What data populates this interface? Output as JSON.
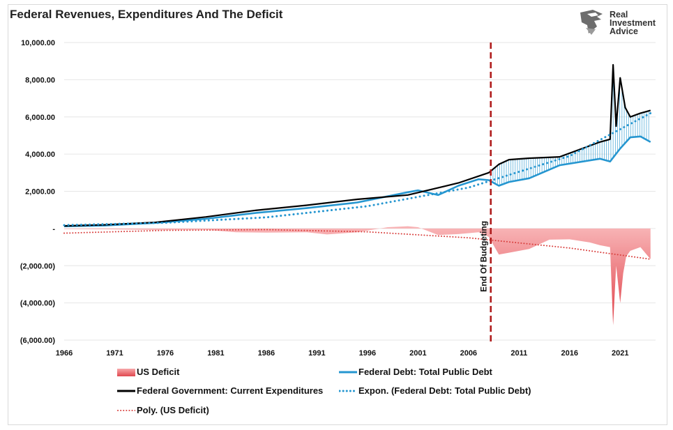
{
  "title": "Federal Revenues, Expenditures And The Deficit",
  "logo": {
    "line1": "Real",
    "line2": "Investment",
    "line3": "Advice",
    "icon": "eagle-icon"
  },
  "annotation": "End Of Budgeting",
  "legend": {
    "deficit": "US Deficit",
    "debt": "Federal Debt: Total Public Debt",
    "expenditures": "Federal Government: Current Expenditures",
    "expon": "Expon. (Federal Debt: Total Public Debt)",
    "poly": "Poly. (US Deficit)"
  },
  "colors": {
    "expenditures": "#000000",
    "debt": "#2596d0",
    "deficit": "#e8646a",
    "poly": "#d9413f",
    "annotation_line": "#b01c1c"
  },
  "chart_data": {
    "type": "line",
    "title": "Federal Revenues, Expenditures And The Deficit",
    "xlim": [
      1966,
      2024.5
    ],
    "ylim": [
      -6000,
      10000
    ],
    "x_ticks": [
      1966,
      1971,
      1976,
      1981,
      1986,
      1991,
      1996,
      2001,
      2006,
      2011,
      2016,
      2021
    ],
    "x_tick_labels": [
      "1966",
      "1971",
      "1976",
      "1981",
      "1986",
      "1991",
      "1996",
      "2001",
      "2006",
      "2011",
      "2016",
      "2021"
    ],
    "y_ticks": [
      10000,
      8000,
      6000,
      4000,
      2000,
      0,
      -2000,
      -4000,
      -6000
    ],
    "y_tick_labels": [
      "10,000.00",
      "8,000.00",
      "6,000.00",
      "4,000.00",
      "2,000.00",
      "-",
      "(2,000.00)",
      "(4,000.00)",
      "(6,000.00)"
    ],
    "grid": true,
    "legend_position": "bottom",
    "annotation_x": 2008.2,
    "series": [
      {
        "name": "Federal Government: Current Expenditures",
        "style": "line",
        "x": [
          1966,
          1970,
          1975,
          1980,
          1985,
          1990,
          1995,
          2000,
          2005,
          2008,
          2009,
          2010,
          2012,
          2015,
          2019,
          2020,
          2020.3,
          2020.6,
          2021,
          2021.5,
          2022,
          2023,
          2024
        ],
        "y": [
          140,
          200,
          330,
          620,
          980,
          1250,
          1570,
          1800,
          2450,
          3000,
          3450,
          3700,
          3780,
          3850,
          4650,
          4800,
          8800,
          5500,
          8100,
          6500,
          6000,
          6200,
          6350
        ]
      },
      {
        "name": "Federal Debt: Total Public Debt",
        "style": "line",
        "x": [
          1966,
          1970,
          1975,
          1980,
          1985,
          1990,
          1995,
          2000,
          2001,
          2003,
          2005,
          2007,
          2008,
          2009,
          2010,
          2012,
          2015,
          2019,
          2020,
          2021,
          2022,
          2023,
          2024
        ],
        "y": [
          120,
          160,
          300,
          520,
          840,
          1100,
          1400,
          1950,
          2050,
          1800,
          2300,
          2650,
          2600,
          2300,
          2500,
          2700,
          3400,
          3750,
          3600,
          4300,
          4900,
          4950,
          4650
        ]
      },
      {
        "name": "US Deficit",
        "style": "area",
        "x": [
          1966,
          1970,
          1975,
          1980,
          1983,
          1986,
          1990,
          1992,
          1995,
          1998,
          2000,
          2001,
          2003,
          2005,
          2007,
          2008,
          2009,
          2010,
          2012,
          2014,
          2016,
          2018,
          2019,
          2020,
          2020.3,
          2020.6,
          2021,
          2021.3,
          2021.6,
          2022,
          2023,
          2024
        ],
        "y": [
          -30,
          -40,
          -80,
          -70,
          -200,
          -220,
          -200,
          -320,
          -200,
          70,
          120,
          70,
          -350,
          -300,
          -200,
          -450,
          -1400,
          -1300,
          -1100,
          -600,
          -580,
          -750,
          -900,
          -1000,
          -5200,
          -2000,
          -4000,
          -2400,
          -1500,
          -1200,
          -1000,
          -1650
        ]
      },
      {
        "name": "Expon. (Federal Debt: Total Public Debt)",
        "style": "dotted",
        "x": [
          1966,
          1976,
          1986,
          1996,
          2006,
          2016,
          2024
        ],
        "y": [
          180,
          310,
          600,
          1200,
          2200,
          3900,
          6200
        ]
      },
      {
        "name": "Poly. (US Deficit)",
        "style": "dotted",
        "x": [
          1966,
          1976,
          1986,
          1996,
          2006,
          2016,
          2024
        ],
        "y": [
          -250,
          -100,
          -60,
          -180,
          -500,
          -1050,
          -1650
        ]
      }
    ]
  }
}
